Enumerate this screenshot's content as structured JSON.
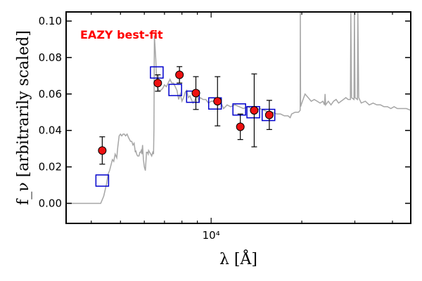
{
  "chart_data": {
    "type": "scatter",
    "xscale": "log",
    "xlim": [
      3300,
      46000
    ],
    "ylim": [
      -0.011,
      0.105
    ],
    "x_ticks": [
      {
        "value": 10000,
        "label": "10⁴"
      }
    ],
    "y_ticks": [
      {
        "value": 0.0,
        "label": "0.00"
      },
      {
        "value": 0.02,
        "label": "0.02"
      },
      {
        "value": 0.04,
        "label": "0.04"
      },
      {
        "value": 0.06,
        "label": "0.06"
      },
      {
        "value": 0.08,
        "label": "0.08"
      },
      {
        "value": 0.1,
        "label": "0.10"
      }
    ],
    "xlabel": "λ [Å]",
    "ylabel": "f_ν [arbitrarily scaled]",
    "annotation": {
      "text": "EAZY best-fit",
      "color": "#ff0000"
    },
    "colors": {
      "template_line": "#a6a6a6",
      "model_squares": "#0000cc",
      "observed_fill": "#ee1111",
      "observed_edge": "#000000"
    },
    "template": [
      [
        3300,
        0.0
      ],
      [
        4300,
        0.0
      ],
      [
        4400,
        0.004
      ],
      [
        4500,
        0.011
      ],
      [
        4550,
        0.016
      ],
      [
        4600,
        0.018
      ],
      [
        4650,
        0.021
      ],
      [
        4700,
        0.024
      ],
      [
        4750,
        0.023
      ],
      [
        4800,
        0.027
      ],
      [
        4860,
        0.025
      ],
      [
        4900,
        0.031
      ],
      [
        4950,
        0.037
      ],
      [
        5000,
        0.038
      ],
      [
        5050,
        0.037
      ],
      [
        5100,
        0.038
      ],
      [
        5150,
        0.038
      ],
      [
        5200,
        0.037
      ],
      [
        5260,
        0.038
      ],
      [
        5320,
        0.036
      ],
      [
        5400,
        0.034
      ],
      [
        5450,
        0.034
      ],
      [
        5500,
        0.032
      ],
      [
        5550,
        0.033
      ],
      [
        5600,
        0.028
      ],
      [
        5620,
        0.029
      ],
      [
        5660,
        0.027
      ],
      [
        5700,
        0.026
      ],
      [
        5760,
        0.026
      ],
      [
        5800,
        0.028
      ],
      [
        5830,
        0.028
      ],
      [
        5860,
        0.029
      ],
      [
        5890,
        0.027
      ],
      [
        5920,
        0.032
      ],
      [
        5960,
        0.024
      ],
      [
        6000,
        0.02
      ],
      [
        6050,
        0.018
      ],
      [
        6100,
        0.028
      ],
      [
        6140,
        0.028
      ],
      [
        6180,
        0.027
      ],
      [
        6200,
        0.029
      ],
      [
        6250,
        0.028
      ],
      [
        6300,
        0.027
      ],
      [
        6350,
        0.026
      ],
      [
        6400,
        0.028
      ],
      [
        6440,
        0.027
      ],
      [
        6460,
        0.041
      ],
      [
        6480,
        0.092
      ],
      [
        6550,
        0.079
      ],
      [
        6600,
        0.065
      ],
      [
        6700,
        0.062
      ],
      [
        6800,
        0.062
      ],
      [
        6900,
        0.063
      ],
      [
        7000,
        0.065
      ],
      [
        7100,
        0.064
      ],
      [
        7200,
        0.066
      ],
      [
        7300,
        0.068
      ],
      [
        7400,
        0.066
      ],
      [
        7500,
        0.066
      ],
      [
        7600,
        0.064
      ],
      [
        7700,
        0.062
      ],
      [
        7800,
        0.057
      ],
      [
        7900,
        0.06
      ],
      [
        8000,
        0.056
      ],
      [
        8100,
        0.058
      ],
      [
        8200,
        0.061
      ],
      [
        8300,
        0.062
      ],
      [
        8400,
        0.058
      ],
      [
        8500,
        0.059
      ],
      [
        8600,
        0.057
      ],
      [
        8700,
        0.055
      ],
      [
        8800,
        0.056
      ],
      [
        8900,
        0.058
      ],
      [
        9000,
        0.059
      ],
      [
        9100,
        0.056
      ],
      [
        9200,
        0.058
      ],
      [
        9400,
        0.057
      ],
      [
        9600,
        0.057
      ],
      [
        9800,
        0.055
      ],
      [
        10000,
        0.056
      ],
      [
        10200,
        0.056
      ],
      [
        10500,
        0.054
      ],
      [
        10800,
        0.055
      ],
      [
        11000,
        0.052
      ],
      [
        11300,
        0.054
      ],
      [
        11600,
        0.053
      ],
      [
        12000,
        0.054
      ],
      [
        12400,
        0.053
      ],
      [
        12800,
        0.052
      ],
      [
        13200,
        0.053
      ],
      [
        13600,
        0.052
      ],
      [
        14000,
        0.051
      ],
      [
        14500,
        0.052
      ],
      [
        15000,
        0.051
      ],
      [
        15500,
        0.05
      ],
      [
        16000,
        0.05
      ],
      [
        16500,
        0.049
      ],
      [
        17000,
        0.049
      ],
      [
        17500,
        0.048
      ],
      [
        18000,
        0.048
      ],
      [
        18300,
        0.047
      ],
      [
        18500,
        0.049
      ],
      [
        19000,
        0.05
      ],
      [
        19500,
        0.05
      ],
      [
        19750,
        0.051
      ],
      [
        19780,
        0.105
      ],
      [
        19820,
        0.053
      ],
      [
        20000,
        0.055
      ],
      [
        20500,
        0.06
      ],
      [
        21000,
        0.058
      ],
      [
        21500,
        0.056
      ],
      [
        22000,
        0.057
      ],
      [
        22500,
        0.056
      ],
      [
        23000,
        0.055
      ],
      [
        23500,
        0.056
      ],
      [
        23800,
        0.054
      ],
      [
        23900,
        0.06
      ],
      [
        24000,
        0.054
      ],
      [
        24500,
        0.056
      ],
      [
        25000,
        0.054
      ],
      [
        25500,
        0.056
      ],
      [
        26000,
        0.057
      ],
      [
        26500,
        0.055
      ],
      [
        27000,
        0.056
      ],
      [
        27500,
        0.057
      ],
      [
        28000,
        0.058
      ],
      [
        28500,
        0.057
      ],
      [
        29000,
        0.057
      ],
      [
        29100,
        0.105
      ],
      [
        29250,
        0.058
      ],
      [
        29800,
        0.057
      ],
      [
        29900,
        0.105
      ],
      [
        30050,
        0.058
      ],
      [
        30600,
        0.057
      ],
      [
        30700,
        0.105
      ],
      [
        30900,
        0.058
      ],
      [
        31500,
        0.055
      ],
      [
        32500,
        0.056
      ],
      [
        33500,
        0.054
      ],
      [
        34500,
        0.055
      ],
      [
        35500,
        0.054
      ],
      [
        36500,
        0.054
      ],
      [
        37500,
        0.053
      ],
      [
        38500,
        0.053
      ],
      [
        39500,
        0.052
      ],
      [
        40500,
        0.053
      ],
      [
        41500,
        0.052
      ],
      [
        42500,
        0.052
      ],
      [
        43500,
        0.052
      ],
      [
        44500,
        0.052
      ],
      [
        46000,
        0.051
      ]
    ],
    "model_photometry": [
      {
        "x": 4350,
        "y": 0.0125
      },
      {
        "x": 6600,
        "y": 0.0718
      },
      {
        "x": 7600,
        "y": 0.0622
      },
      {
        "x": 8700,
        "y": 0.0585
      },
      {
        "x": 10300,
        "y": 0.0548
      },
      {
        "x": 12400,
        "y": 0.0515
      },
      {
        "x": 13800,
        "y": 0.05
      },
      {
        "x": 15500,
        "y": 0.0485
      }
    ],
    "observed_photometry": [
      {
        "x": 4350,
        "y": 0.029,
        "yerr": 0.0075
      },
      {
        "x": 6650,
        "y": 0.066,
        "yerr": 0.0045
      },
      {
        "x": 7850,
        "y": 0.0705,
        "yerr": 0.0045
      },
      {
        "x": 8900,
        "y": 0.0605,
        "yerr": 0.009
      },
      {
        "x": 10500,
        "y": 0.056,
        "yerr": 0.0135
      },
      {
        "x": 12500,
        "y": 0.042,
        "yerr": 0.007
      },
      {
        "x": 13900,
        "y": 0.051,
        "yerr": 0.02
      },
      {
        "x": 15600,
        "y": 0.0485,
        "yerr": 0.008
      }
    ]
  }
}
